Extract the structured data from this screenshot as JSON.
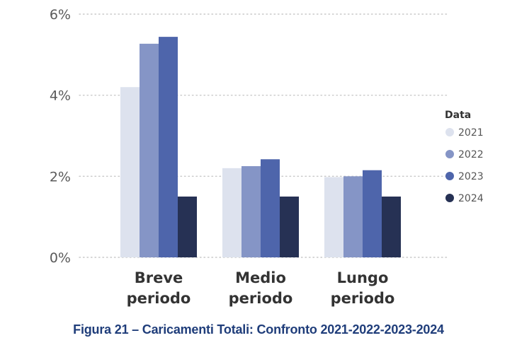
{
  "caption": "Figura 21 – Caricamenti Totali: Confronto 2021-2022-2023-2024",
  "chart_data": {
    "type": "bar",
    "title": "",
    "xlabel": "",
    "ylabel": "",
    "categories": [
      [
        "Breve",
        "periodo"
      ],
      [
        "Medio",
        "periodo"
      ],
      [
        "Lungo",
        "periodo"
      ]
    ],
    "series": [
      {
        "name": "2021",
        "color": "#dde2ee",
        "values": [
          4.2,
          2.2,
          1.98
        ]
      },
      {
        "name": "2022",
        "color": "#8595c6",
        "values": [
          5.27,
          2.25,
          2.0
        ]
      },
      {
        "name": "2023",
        "color": "#4e65ab",
        "values": [
          5.44,
          2.42,
          2.15
        ]
      },
      {
        "name": "2024",
        "color": "#263154",
        "values": [
          1.5,
          1.5,
          1.5
        ]
      }
    ],
    "ylim": [
      0,
      6
    ],
    "yticks": [
      0,
      2,
      4,
      6
    ],
    "ytick_labels": [
      "0%",
      "2%",
      "4%",
      "6%"
    ],
    "grid": "dotted horizontal",
    "legend": {
      "title": "Data",
      "placement": "right"
    }
  }
}
